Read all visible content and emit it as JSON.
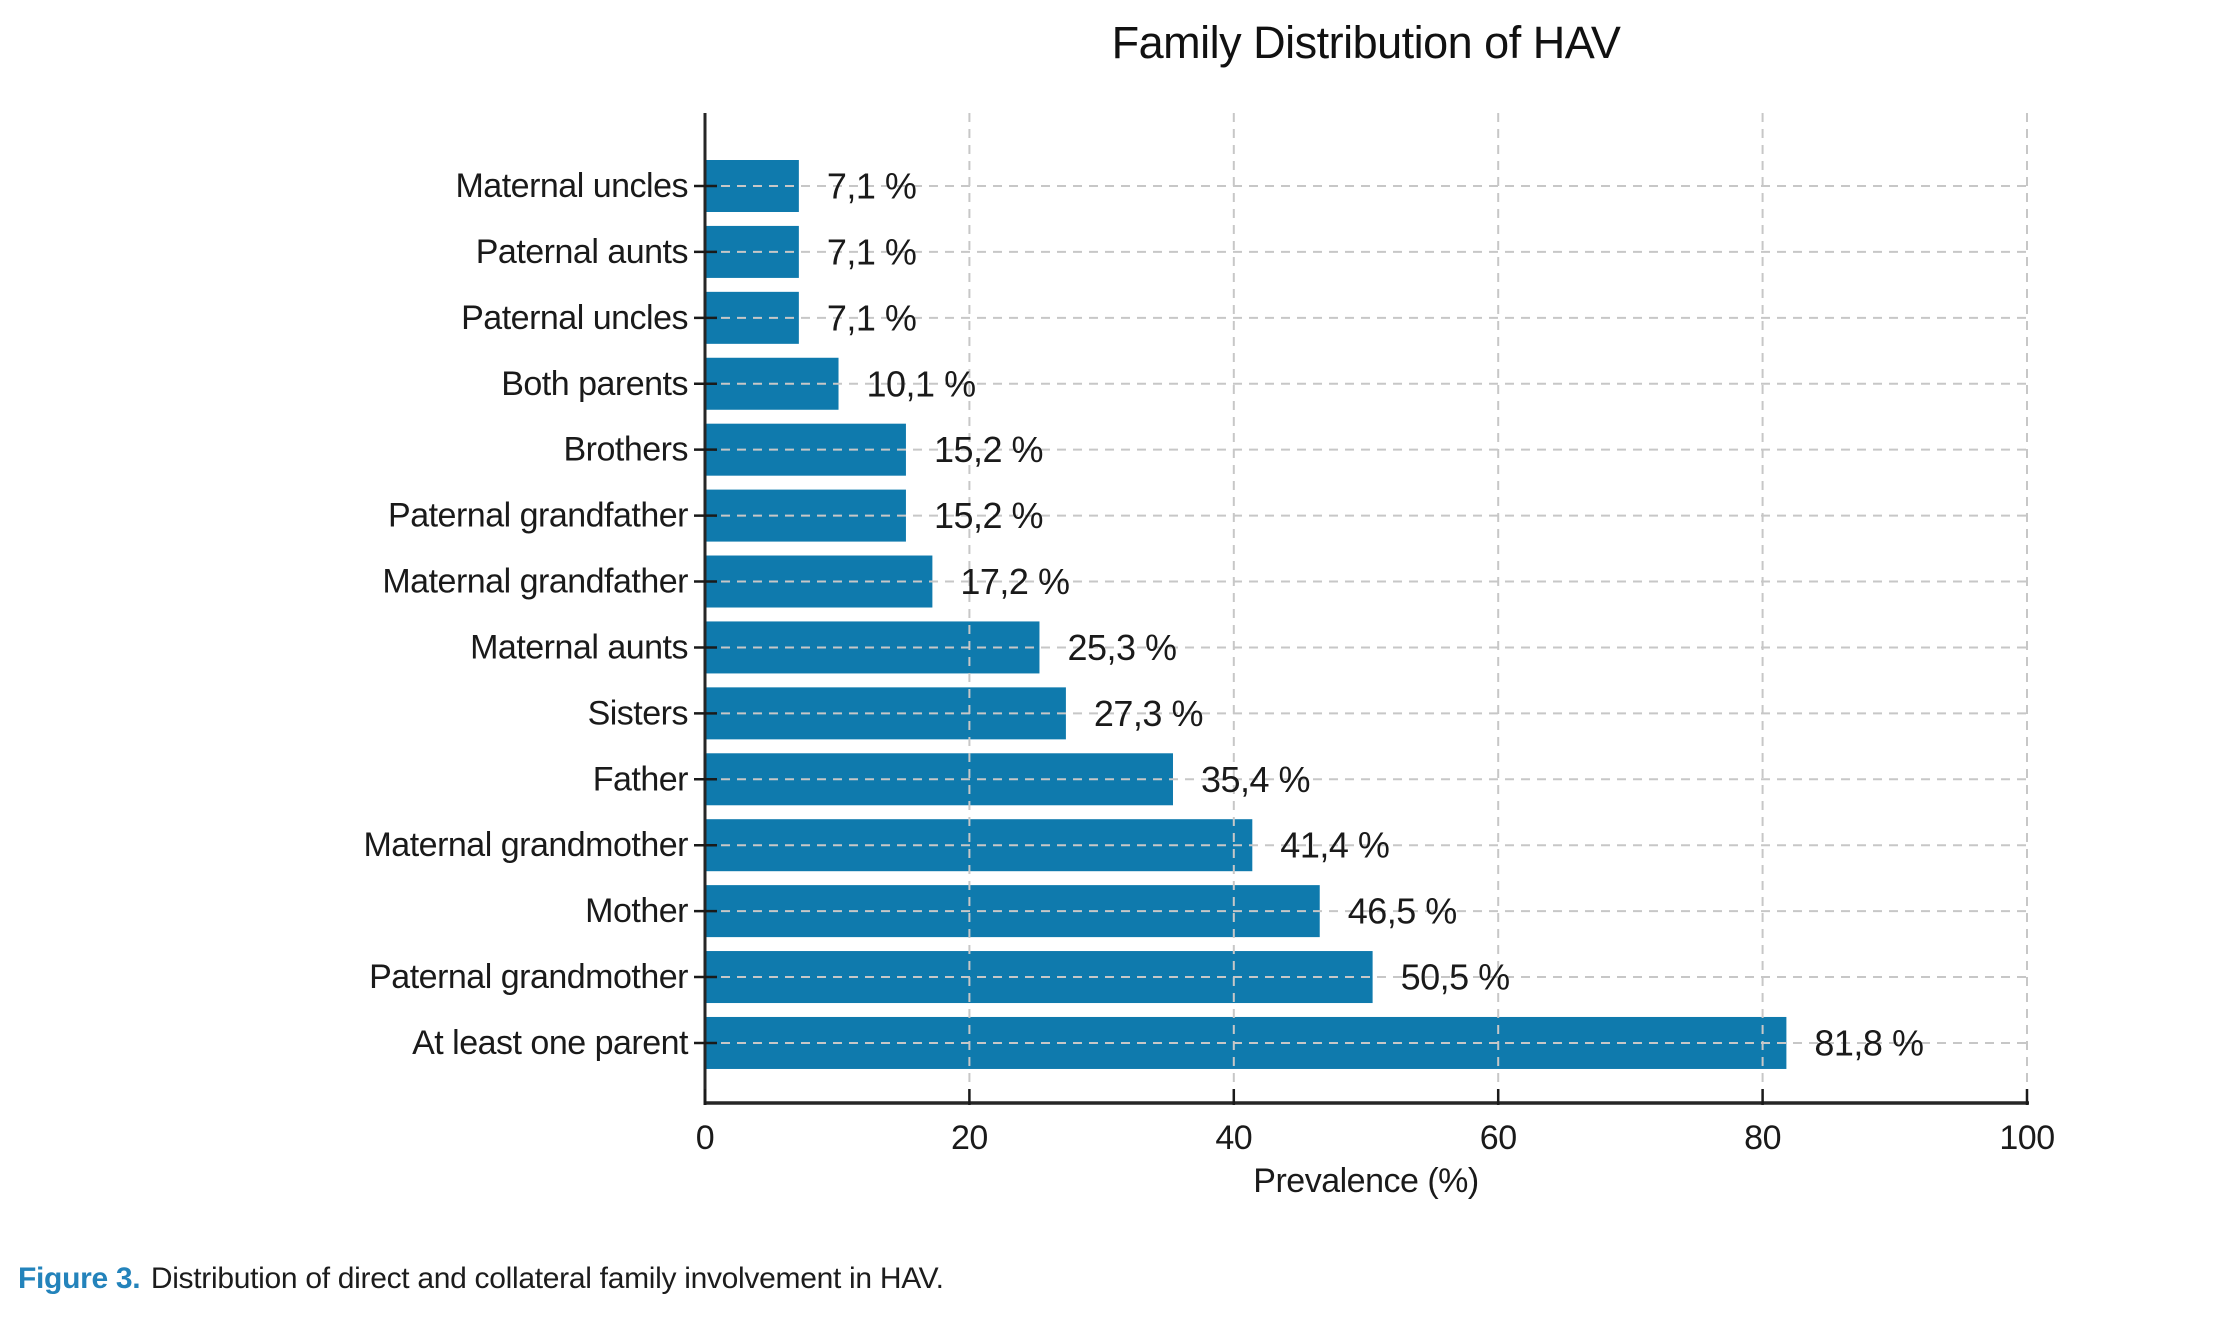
{
  "chart_data": {
    "type": "bar",
    "orientation": "horizontal",
    "title": "Family Distribution of HAV",
    "xlabel": "Prevalence (%)",
    "categories": [
      "Maternal uncles",
      "Paternal aunts",
      "Paternal uncles",
      "Both parents",
      "Brothers",
      "Paternal grandfather",
      "Maternal grandfather",
      "Maternal aunts",
      "Sisters",
      "Father",
      "Maternal grandmother",
      "Mother",
      "Paternal grandmother",
      "At least one parent"
    ],
    "values": [
      7.1,
      7.1,
      7.1,
      10.1,
      15.2,
      15.2,
      17.2,
      25.3,
      27.3,
      35.4,
      41.4,
      46.5,
      50.5,
      81.8
    ],
    "value_labels": [
      "7,1 %",
      "7,1 %",
      "7,1 %",
      "10,1 %",
      "15,2 %",
      "15,2 %",
      "17,2 %",
      "25,3 %",
      "27,3 %",
      "35,4 %",
      "41,4 %",
      "46,5 %",
      "50,5 %",
      "81,8 %"
    ],
    "x_ticks": [
      "0",
      "20",
      "40",
      "60",
      "80",
      "100"
    ],
    "x_tick_values": [
      0,
      20,
      40,
      60,
      80,
      100
    ],
    "xlim": [
      0,
      100
    ],
    "grid": "dashed",
    "legend": null,
    "bar_color": "#0f7aad"
  },
  "caption": {
    "label": "Figure 3.",
    "text": "Distribution of direct and collateral family involvement in HAV.",
    "accent_color": "#2383bb"
  },
  "colors": {
    "background": "#ffffff",
    "grid": "#c7c7c7",
    "axis": "#262626",
    "text": "#1a1a1a"
  }
}
